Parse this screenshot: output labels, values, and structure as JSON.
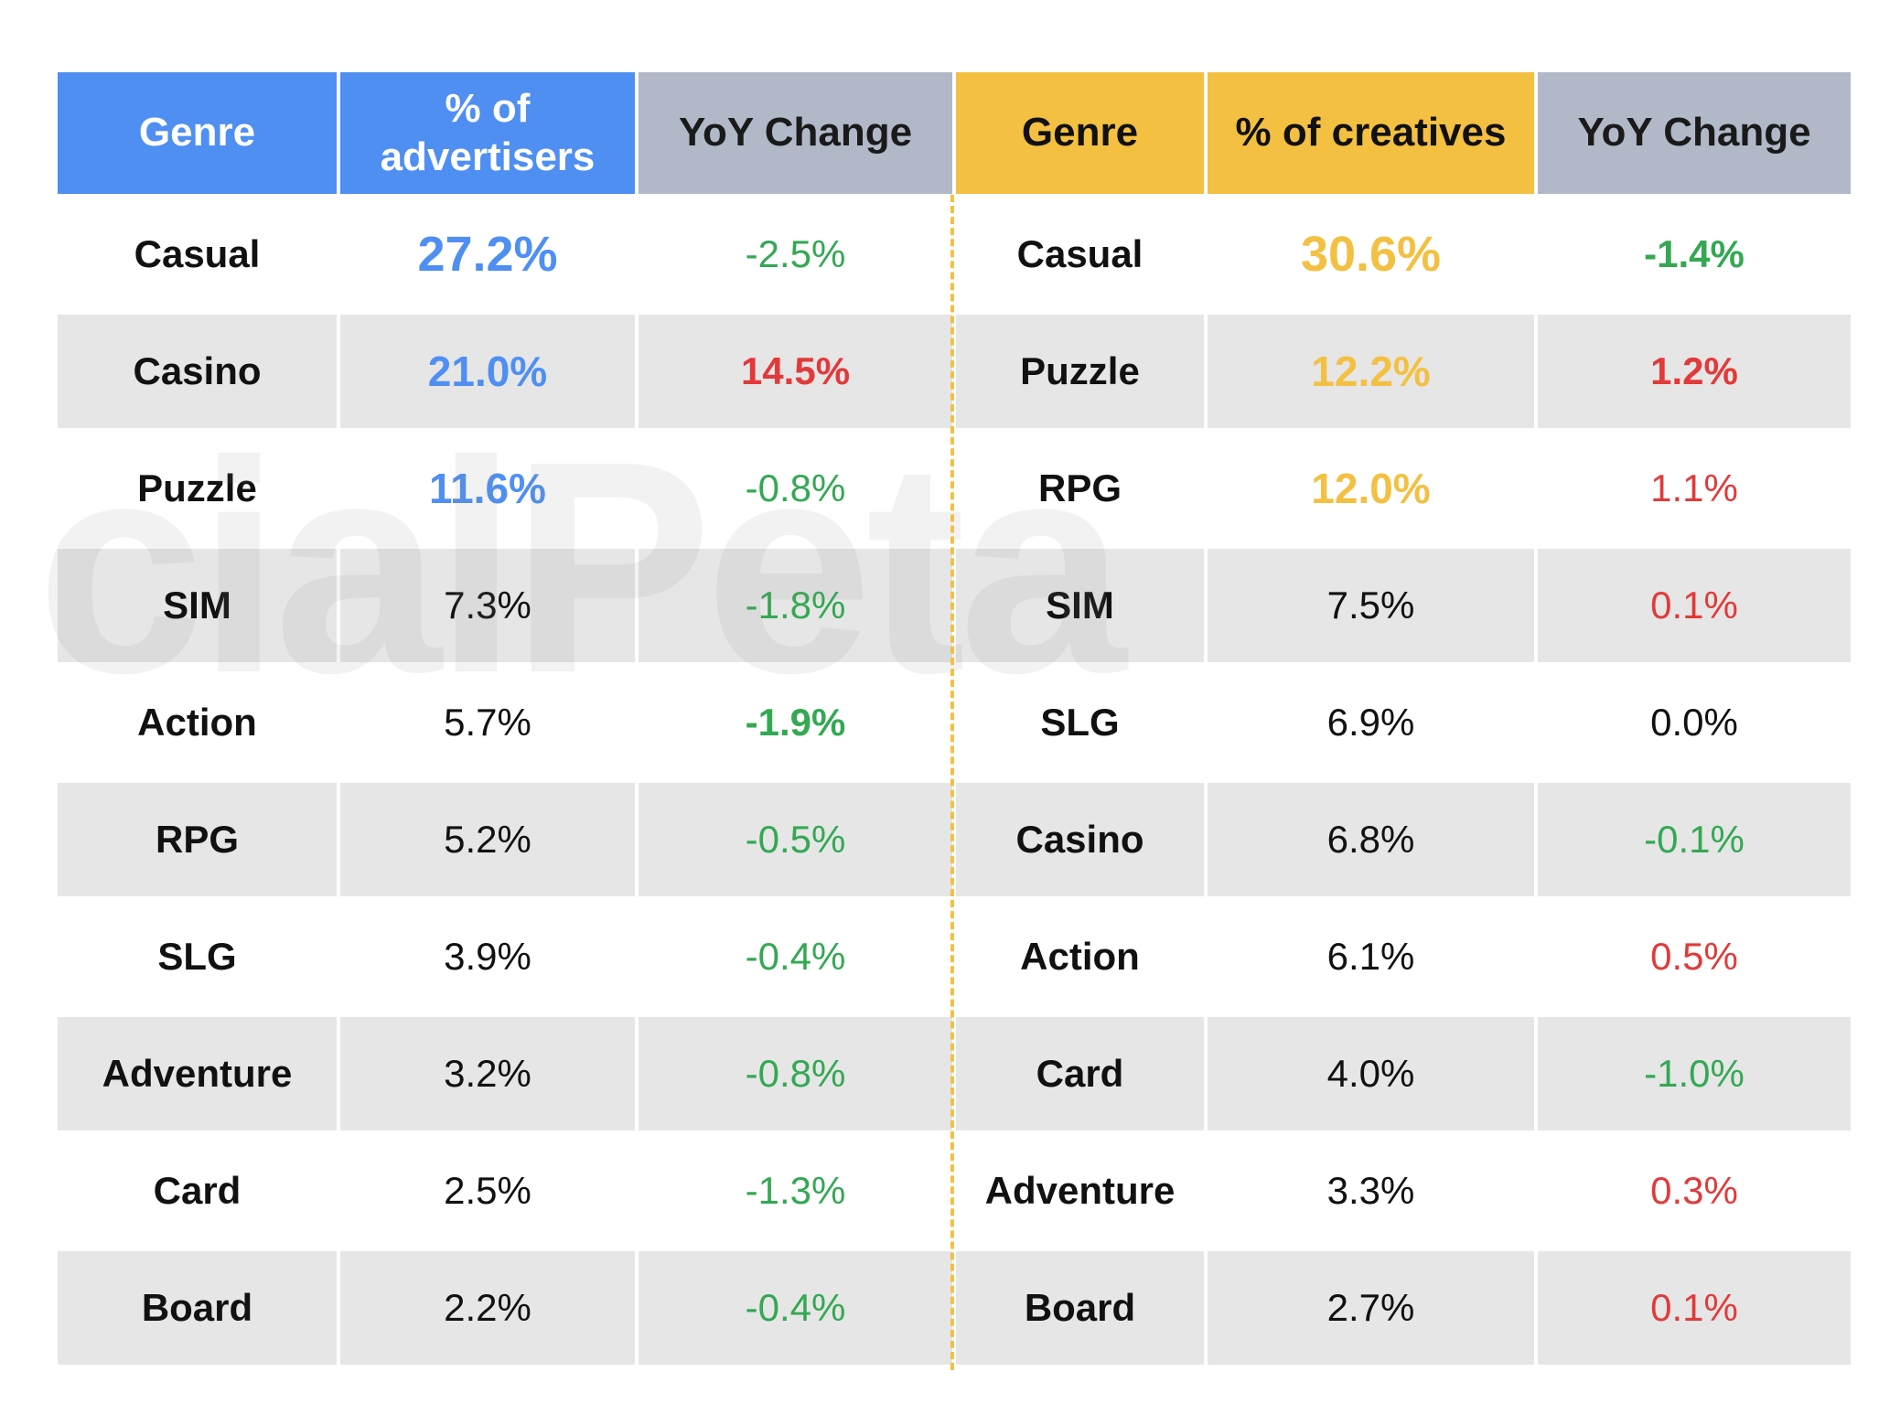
{
  "watermark": "cialPeta",
  "chart_data": {
    "type": "table",
    "tables": [
      {
        "columns": [
          "Genre",
          "% of advertisers",
          "YoY Change"
        ],
        "rows": [
          {
            "genre": "Casual",
            "share": "27.2%",
            "yoy": "-2.5%"
          },
          {
            "genre": "Casino",
            "share": "21.0%",
            "yoy": "14.5%"
          },
          {
            "genre": "Puzzle",
            "share": "11.6%",
            "yoy": "-0.8%"
          },
          {
            "genre": "SIM",
            "share": "7.3%",
            "yoy": "-1.8%"
          },
          {
            "genre": "Action",
            "share": "5.7%",
            "yoy": "-1.9%"
          },
          {
            "genre": "RPG",
            "share": "5.2%",
            "yoy": "-0.5%"
          },
          {
            "genre": "SLG",
            "share": "3.9%",
            "yoy": "-0.4%"
          },
          {
            "genre": "Adventure",
            "share": "3.2%",
            "yoy": "-0.8%"
          },
          {
            "genre": "Card",
            "share": "2.5%",
            "yoy": "-1.3%"
          },
          {
            "genre": "Board",
            "share": "2.2%",
            "yoy": "-0.4%"
          }
        ]
      },
      {
        "columns": [
          "Genre",
          "% of creatives",
          "YoY Change"
        ],
        "rows": [
          {
            "genre": "Casual",
            "share": "30.6%",
            "yoy": "-1.4%"
          },
          {
            "genre": "Puzzle",
            "share": "12.2%",
            "yoy": "1.2%"
          },
          {
            "genre": "RPG",
            "share": "12.0%",
            "yoy": "1.1%"
          },
          {
            "genre": "SIM",
            "share": "7.5%",
            "yoy": "0.1%"
          },
          {
            "genre": "SLG",
            "share": "6.9%",
            "yoy": "0.0%"
          },
          {
            "genre": "Casino",
            "share": "6.8%",
            "yoy": "-0.1%"
          },
          {
            "genre": "Action",
            "share": "6.1%",
            "yoy": "0.5%"
          },
          {
            "genre": "Card",
            "share": "4.0%",
            "yoy": "-1.0%"
          },
          {
            "genre": "Adventure",
            "share": "3.3%",
            "yoy": "0.3%"
          },
          {
            "genre": "Board",
            "share": "2.7%",
            "yoy": "0.1%"
          }
        ]
      }
    ],
    "colors": {
      "advertisers_header": "#4f8ff2",
      "creatives_header": "#f3c042",
      "yoy_header": "#b1b8c8",
      "increase": "#e23a3a",
      "decrease": "#34a853",
      "row_shade": "#e6e6e6"
    }
  }
}
